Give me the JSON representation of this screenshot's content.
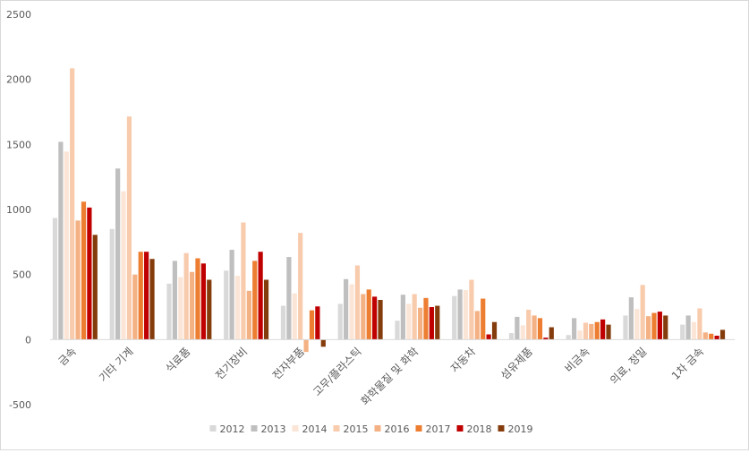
{
  "chart_data": {
    "type": "bar",
    "title": "",
    "xlabel": "",
    "ylabel": "",
    "ylim": [
      -500,
      2500
    ],
    "yticks": [
      -500,
      0,
      500,
      1000,
      1500,
      2000,
      2500
    ],
    "ytick_labels": [
      "-500",
      "0",
      "500",
      "1000",
      "1500",
      "2000",
      "2500"
    ],
    "grid": false,
    "legend_position": "bottom",
    "categories": [
      "금속",
      "기타 기계",
      "식료품",
      "전기장비",
      "전자부품",
      "고무/플라스틱",
      "화학물질 및 화학",
      "자동차",
      "섬유제품",
      "비금속",
      "의료, 정밀",
      "1차 금속"
    ],
    "series": [
      {
        "name": "2012",
        "color": "#d9d9d9",
        "values": [
          935,
          850,
          430,
          530,
          260,
          275,
          145,
          335,
          50,
          35,
          185,
          115
        ]
      },
      {
        "name": "2013",
        "color": "#bfbfbf",
        "values": [
          1520,
          1315,
          605,
          690,
          635,
          465,
          345,
          385,
          175,
          165,
          325,
          185
        ]
      },
      {
        "name": "2014",
        "color": "#fbe5d6",
        "values": [
          1445,
          1140,
          480,
          490,
          355,
          425,
          275,
          380,
          110,
          70,
          235,
          135
        ]
      },
      {
        "name": "2015",
        "color": "#f8cbad",
        "values": [
          2085,
          1715,
          665,
          900,
          820,
          570,
          350,
          460,
          230,
          130,
          420,
          240
        ]
      },
      {
        "name": "2016",
        "color": "#f4b183",
        "values": [
          915,
          500,
          520,
          375,
          -95,
          350,
          245,
          220,
          185,
          120,
          180,
          55
        ]
      },
      {
        "name": "2017",
        "color": "#ed7d31",
        "values": [
          1060,
          675,
          625,
          605,
          225,
          385,
          320,
          315,
          165,
          135,
          205,
          45
        ]
      },
      {
        "name": "2018",
        "color": "#c00000",
        "values": [
          1015,
          675,
          585,
          675,
          255,
          330,
          250,
          40,
          15,
          155,
          215,
          30
        ]
      },
      {
        "name": "2019",
        "color": "#843c0c",
        "values": [
          805,
          620,
          460,
          460,
          -55,
          305,
          260,
          135,
          95,
          115,
          185,
          75
        ]
      }
    ]
  }
}
